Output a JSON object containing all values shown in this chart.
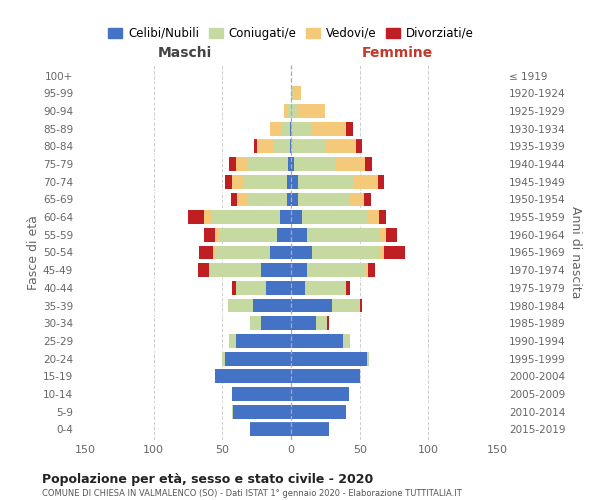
{
  "age_groups": [
    "0-4",
    "5-9",
    "10-14",
    "15-19",
    "20-24",
    "25-29",
    "30-34",
    "35-39",
    "40-44",
    "45-49",
    "50-54",
    "55-59",
    "60-64",
    "65-69",
    "70-74",
    "75-79",
    "80-84",
    "85-89",
    "90-94",
    "95-99",
    "100+"
  ],
  "birth_years": [
    "2015-2019",
    "2010-2014",
    "2005-2009",
    "2000-2004",
    "1995-1999",
    "1990-1994",
    "1985-1989",
    "1980-1984",
    "1975-1979",
    "1970-1974",
    "1965-1969",
    "1960-1964",
    "1955-1959",
    "1950-1954",
    "1945-1949",
    "1940-1944",
    "1935-1939",
    "1930-1934",
    "1925-1929",
    "1920-1924",
    "≤ 1919"
  ],
  "colors": {
    "celibi": "#4472C4",
    "coniugati": "#c5d9a0",
    "vedovi": "#f5c97a",
    "divorziati": "#bf1f23"
  },
  "maschi_celibi": [
    30,
    42,
    43,
    55,
    48,
    40,
    22,
    28,
    18,
    22,
    15,
    10,
    8,
    3,
    3,
    2,
    1,
    1,
    0,
    0,
    0
  ],
  "maschi_coniugati": [
    0,
    1,
    0,
    0,
    2,
    5,
    8,
    18,
    22,
    38,
    40,
    42,
    50,
    28,
    32,
    30,
    12,
    6,
    3,
    0,
    0
  ],
  "maschi_vedovi": [
    0,
    0,
    0,
    0,
    0,
    0,
    0,
    0,
    0,
    0,
    2,
    3,
    5,
    8,
    8,
    8,
    12,
    8,
    2,
    0,
    0
  ],
  "maschi_divorziati": [
    0,
    0,
    0,
    0,
    0,
    0,
    0,
    0,
    3,
    8,
    10,
    8,
    12,
    5,
    5,
    5,
    2,
    0,
    0,
    0,
    0
  ],
  "femmine_celibi": [
    28,
    40,
    42,
    50,
    55,
    38,
    18,
    30,
    10,
    12,
    15,
    12,
    8,
    5,
    5,
    2,
    0,
    0,
    0,
    0,
    0
  ],
  "femmine_coniugati": [
    0,
    0,
    0,
    0,
    2,
    5,
    8,
    20,
    30,
    42,
    50,
    52,
    48,
    38,
    40,
    30,
    25,
    15,
    5,
    2,
    0
  ],
  "femmine_vedovi": [
    0,
    0,
    0,
    0,
    0,
    0,
    0,
    0,
    0,
    2,
    3,
    5,
    8,
    10,
    18,
    22,
    22,
    25,
    20,
    5,
    0
  ],
  "femmine_divorziati": [
    0,
    0,
    0,
    0,
    0,
    0,
    2,
    2,
    3,
    5,
    15,
    8,
    5,
    5,
    5,
    5,
    5,
    5,
    0,
    0,
    0
  ],
  "title": "Popolazione per età, sesso e stato civile - 2020",
  "subtitle": "COMUNE DI CHIESA IN VALMALENCO (SO) - Dati ISTAT 1° gennaio 2020 - Elaborazione TUTTITALIA.IT",
  "xlabel_left": "Maschi",
  "xlabel_right": "Femmine",
  "ylabel_left": "Fasce di età",
  "ylabel_right": "Anni di nascita",
  "xlim": 155,
  "legend_labels": [
    "Celibi/Nubili",
    "Coniugati/e",
    "Vedovi/e",
    "Divorziati/e"
  ]
}
